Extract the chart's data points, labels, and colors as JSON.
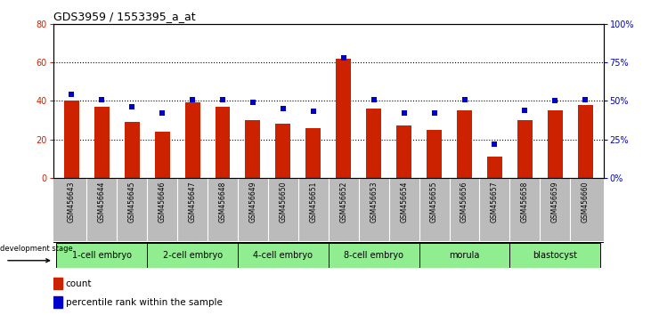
{
  "title": "GDS3959 / 1553395_a_at",
  "samples": [
    "GSM456643",
    "GSM456644",
    "GSM456645",
    "GSM456646",
    "GSM456647",
    "GSM456648",
    "GSM456649",
    "GSM456650",
    "GSM456651",
    "GSM456652",
    "GSM456653",
    "GSM456654",
    "GSM456655",
    "GSM456656",
    "GSM456657",
    "GSM456658",
    "GSM456659",
    "GSM456660"
  ],
  "counts": [
    40,
    37,
    29,
    24,
    39,
    37,
    30,
    28,
    26,
    62,
    36,
    27,
    25,
    35,
    11,
    30,
    35,
    38
  ],
  "percentiles": [
    54,
    51,
    46,
    42,
    51,
    51,
    49,
    45,
    43,
    78,
    51,
    42,
    42,
    51,
    22,
    44,
    50,
    51
  ],
  "bar_color": "#cc2200",
  "dot_color": "#0000cc",
  "ylim_left": [
    0,
    80
  ],
  "ylim_right": [
    0,
    100
  ],
  "yticks_left": [
    0,
    20,
    40,
    60,
    80
  ],
  "yticks_right": [
    0,
    25,
    50,
    75,
    100
  ],
  "ytick_labels_right": [
    "0%",
    "25%",
    "50%",
    "75%",
    "100%"
  ],
  "groups": [
    {
      "label": "1-cell embryo",
      "start": 0,
      "end": 3
    },
    {
      "label": "2-cell embryo",
      "start": 3,
      "end": 6
    },
    {
      "label": "4-cell embryo",
      "start": 6,
      "end": 9
    },
    {
      "label": "8-cell embryo",
      "start": 9,
      "end": 12
    },
    {
      "label": "morula",
      "start": 12,
      "end": 15
    },
    {
      "label": "blastocyst",
      "start": 15,
      "end": 18
    }
  ],
  "group_color": "#90ee90",
  "xticklabel_bg": "#bbbbbb",
  "hline_values": [
    20,
    40,
    60
  ],
  "bar_width": 0.5,
  "title_fontsize": 9,
  "tick_fontsize": 7,
  "xlabel_fontsize": 5.5,
  "group_fontsize": 7,
  "legend_fontsize": 7.5,
  "dev_stage_text": "development stage"
}
